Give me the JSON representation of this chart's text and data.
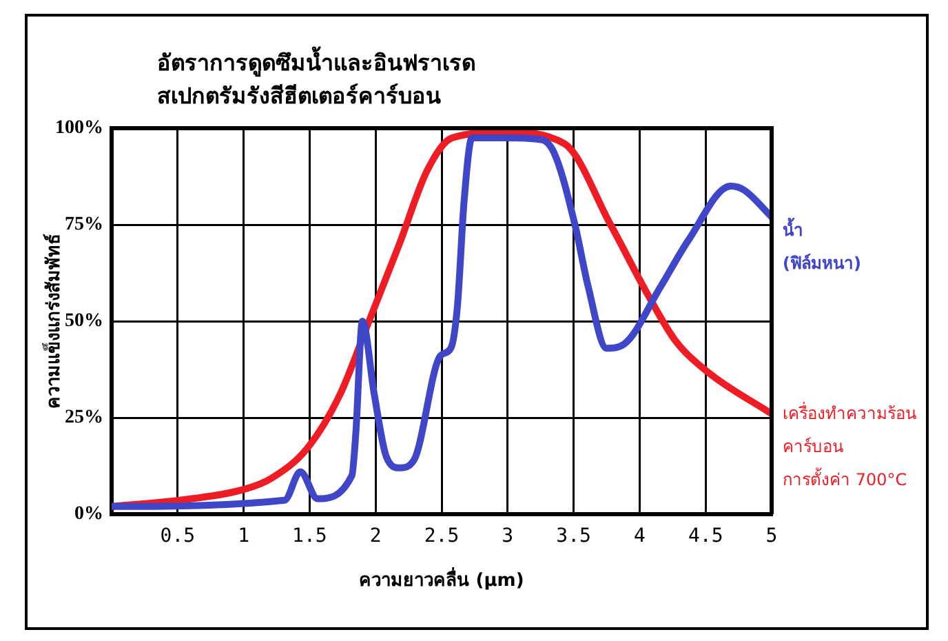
{
  "chart_data": {
    "type": "line",
    "title": "อัตราการดูดซึมน้ำและอินฟราเรด\nสเปกตรัมรังสีฮีตเตอร์คาร์บอน",
    "xlabel": "ความยาวคลื่น  (μm)",
    "ylabel": "ความแข็งแกร่งสัมพัทธ์",
    "series": [
      {
        "name": "น้ำ\n(ฟิล์มหนา)",
        "color": "#4046c8",
        "x": [
          0,
          1.31,
          1.43,
          1.56,
          1.82,
          1.85,
          1.9,
          1.99,
          2.08,
          2.18,
          2.29,
          2.49,
          2.57,
          2.62,
          2.67,
          2.73,
          3.0,
          3.26,
          3.36,
          3.51,
          3.61,
          3.75,
          3.88,
          4.16,
          4.37,
          4.69,
          4.79,
          5.0
        ],
        "values": [
          2,
          3.6,
          11,
          4,
          10,
          21,
          50,
          31,
          15,
          12,
          14,
          41,
          43,
          54,
          81,
          97.5,
          97.5,
          97,
          93,
          75,
          59,
          43,
          44,
          59,
          71,
          85,
          84,
          77
        ]
      },
      {
        "name": "เครื่องทำความร้อน\nคาร์บอน\nการตั้งค่า 700°C",
        "color": "#ee1c25",
        "x": [
          0,
          0.51,
          1.0,
          1.21,
          1.48,
          1.73,
          1.95,
          2.18,
          2.39,
          2.58,
          2.98,
          3.43,
          3.78,
          4.06,
          4.27,
          4.51,
          5.0
        ],
        "values": [
          2,
          3.6,
          6.4,
          9.3,
          17,
          31,
          50,
          70,
          89,
          97.5,
          99,
          96,
          75,
          57,
          45,
          37,
          26
        ]
      }
    ],
    "xlim": [
      0,
      5
    ],
    "xticks": [
      0.5,
      1,
      1.5,
      2,
      2.5,
      3,
      3.5,
      4,
      4.5,
      5
    ],
    "ylim": [
      0,
      100
    ],
    "yticks": [
      {
        "value": 0,
        "label": "0%"
      },
      {
        "value": 25,
        "label": "25%"
      },
      {
        "value": 50,
        "label": "50%"
      },
      {
        "value": 75,
        "label": "75%"
      },
      {
        "value": 100,
        "label": "100%"
      }
    ],
    "grid": true,
    "marker": "none",
    "line_style": "solid"
  }
}
